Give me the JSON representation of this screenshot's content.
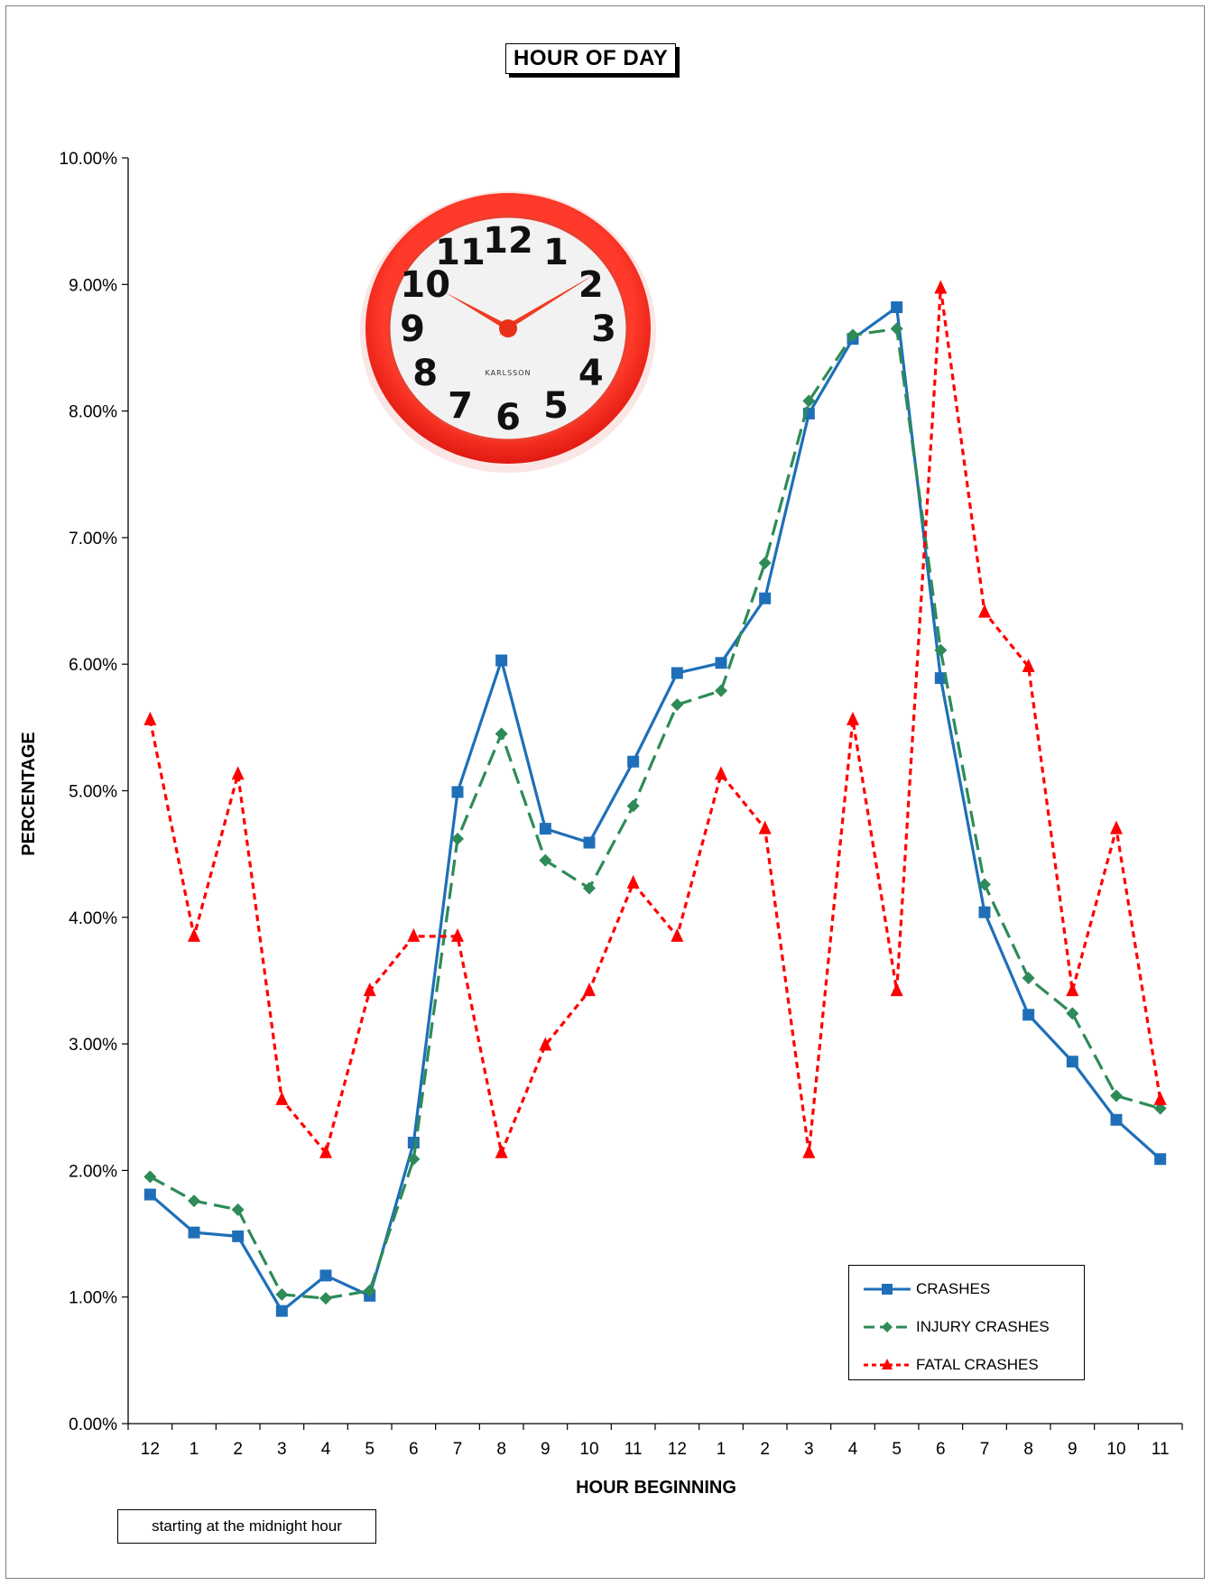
{
  "chart_data": {
    "type": "line",
    "title": "HOUR OF DAY",
    "xlabel": "HOUR BEGINNING",
    "ylabel": "PERCENTAGE",
    "note": "starting at the midnight hour",
    "categories": [
      "12",
      "1",
      "2",
      "3",
      "4",
      "5",
      "6",
      "7",
      "8",
      "9",
      "10",
      "11",
      "12",
      "1",
      "2",
      "3",
      "4",
      "5",
      "6",
      "7",
      "8",
      "9",
      "10",
      "11"
    ],
    "ylim": [
      0,
      10
    ],
    "yticks": [
      "0.00%",
      "1.00%",
      "2.00%",
      "3.00%",
      "4.00%",
      "5.00%",
      "6.00%",
      "7.00%",
      "8.00%",
      "9.00%",
      "10.00%"
    ],
    "grid": false,
    "legend_position": "bottom-right",
    "series": [
      {
        "name": "CRASHES",
        "color": "#1f6fb8",
        "marker": "square",
        "style": "solid",
        "values": [
          1.81,
          1.51,
          1.48,
          0.89,
          1.17,
          1.01,
          2.22,
          4.99,
          6.03,
          4.7,
          4.59,
          5.23,
          5.93,
          6.01,
          6.52,
          7.98,
          8.57,
          8.82,
          5.89,
          4.04,
          3.23,
          2.86,
          2.4,
          2.09
        ]
      },
      {
        "name": "INJURY CRASHES",
        "color": "#2e8b57",
        "marker": "diamond",
        "style": "dashed",
        "values": [
          1.95,
          1.76,
          1.69,
          1.02,
          0.99,
          1.05,
          2.09,
          4.62,
          5.45,
          4.45,
          4.23,
          4.88,
          5.68,
          5.79,
          6.8,
          8.08,
          8.6,
          8.65,
          6.11,
          4.26,
          3.52,
          3.24,
          2.59,
          2.49
        ]
      },
      {
        "name": "FATAL CRASHES",
        "color": "#ff0000",
        "marker": "triangle",
        "style": "dotted",
        "values": [
          5.56,
          3.85,
          5.13,
          2.56,
          2.14,
          3.42,
          3.85,
          3.85,
          2.14,
          2.99,
          3.42,
          4.27,
          3.85,
          5.13,
          4.7,
          2.14,
          5.56,
          3.42,
          8.97,
          6.41,
          5.98,
          3.42,
          4.7,
          2.56
        ]
      }
    ]
  },
  "clock": {
    "brand": "KARLSSON",
    "numerals": [
      "12",
      "1",
      "2",
      "3",
      "4",
      "5",
      "6",
      "7",
      "8",
      "9",
      "10",
      "11"
    ]
  }
}
